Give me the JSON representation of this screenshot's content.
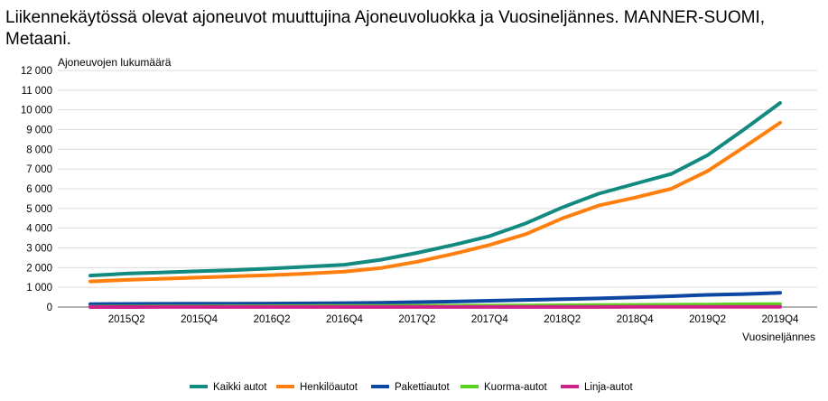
{
  "title": "Liikennekäytössä olevat ajoneuvot muuttujina Ajoneuvoluokka ja Vuosineljännes. MANNER-SUOMI, Metaani.",
  "chart_data": {
    "type": "line",
    "title": "Liikennekäytössä olevat ajoneuvot muuttujina Ajoneuvoluokka ja Vuosineljännes. MANNER-SUOMI, Metaani.",
    "ylabel": "Ajoneuvojen lukumäärä",
    "xlabel": "Vuosineljännes",
    "ylim": [
      0,
      12000
    ],
    "yticks": [
      "0",
      "1 000",
      "2 000",
      "3 000",
      "4 000",
      "5 000",
      "6 000",
      "7 000",
      "8 000",
      "9 000",
      "10 000",
      "11 000",
      "12 000"
    ],
    "grid": true,
    "legend": "bottom",
    "categories": [
      "2015Q1",
      "2015Q2",
      "2015Q3",
      "2015Q4",
      "2016Q1",
      "2016Q2",
      "2016Q3",
      "2016Q4",
      "2017Q1",
      "2017Q2",
      "2017Q3",
      "2017Q4",
      "2018Q1",
      "2018Q2",
      "2018Q3",
      "2018Q4",
      "2019Q1",
      "2019Q2",
      "2019Q3",
      "2019Q4"
    ],
    "tick_labels": [
      "2015Q2",
      "2015Q4",
      "2016Q2",
      "2016Q4",
      "2017Q2",
      "2017Q4",
      "2018Q2",
      "2018Q4",
      "2019Q2",
      "2019Q4"
    ],
    "series": [
      {
        "name": "Kaikki autot",
        "color": "#138a80",
        "values": [
          1600,
          1700,
          1760,
          1820,
          1880,
          1960,
          2050,
          2150,
          2400,
          2750,
          3150,
          3600,
          4250,
          5050,
          5750,
          6250,
          6750,
          7700,
          9000,
          10350
        ]
      },
      {
        "name": "Henkilöautot",
        "color": "#ff7f0e",
        "values": [
          1300,
          1380,
          1440,
          1500,
          1560,
          1620,
          1700,
          1800,
          1980,
          2300,
          2700,
          3150,
          3700,
          4500,
          5150,
          5550,
          6000,
          6900,
          8100,
          9350
        ]
      },
      {
        "name": "Pakettiautot",
        "color": "#0d47a1",
        "values": [
          150,
          160,
          165,
          170,
          175,
          180,
          190,
          200,
          220,
          250,
          280,
          320,
          360,
          400,
          440,
          490,
          550,
          620,
          660,
          720
        ]
      },
      {
        "name": "Kuorma-autot",
        "color": "#5bd31c",
        "values": [
          20,
          25,
          30,
          35,
          40,
          45,
          50,
          55,
          60,
          65,
          70,
          75,
          80,
          90,
          100,
          110,
          120,
          130,
          140,
          150
        ]
      },
      {
        "name": "Linja-autot",
        "color": "#d0218b",
        "values": [
          2,
          2,
          3,
          3,
          3,
          3,
          4,
          4,
          4,
          5,
          5,
          5,
          6,
          6,
          6,
          7,
          7,
          7,
          8,
          8
        ]
      }
    ]
  }
}
